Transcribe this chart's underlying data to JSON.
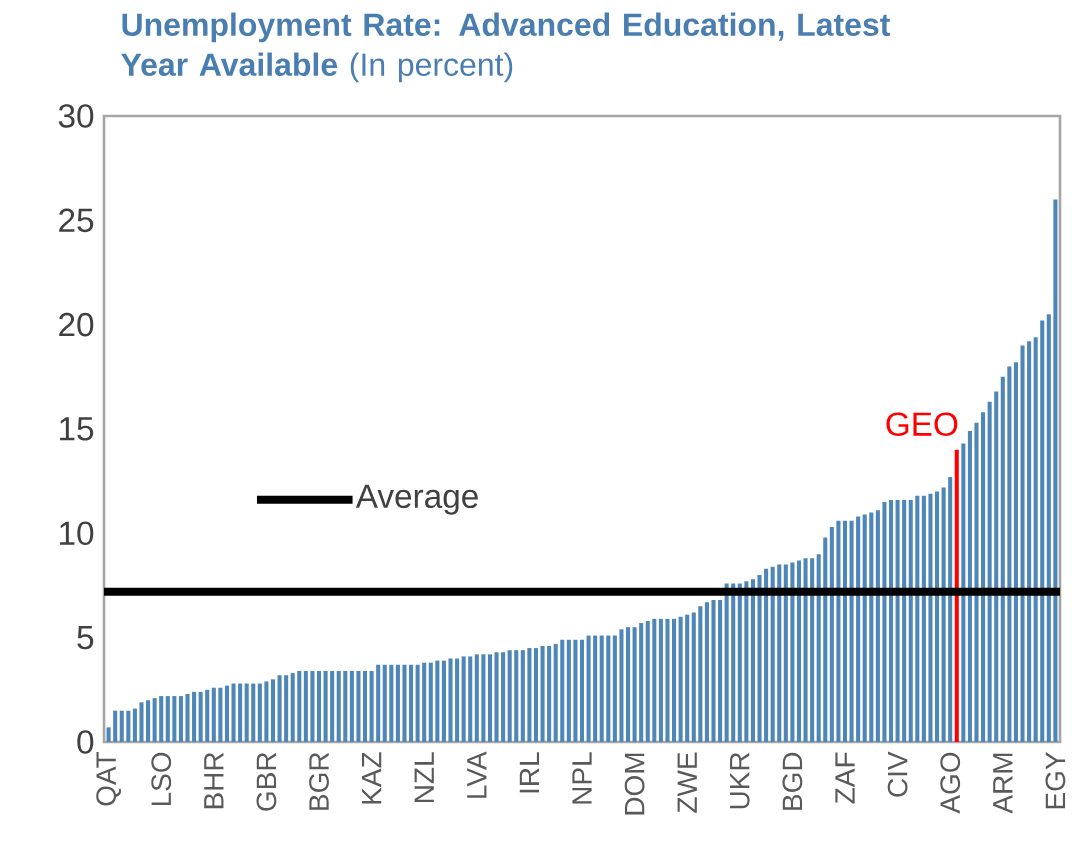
{
  "chart_data": {
    "type": "bar",
    "title": "**Unemployment Rate: Advanced Education, Latest Year Available** (In percent)",
    "categories": [
      "QAT",
      null,
      null,
      null,
      null,
      null,
      null,
      null,
      "LSO",
      null,
      null,
      null,
      null,
      null,
      null,
      null,
      "BHR",
      null,
      null,
      null,
      null,
      null,
      null,
      null,
      "GBR",
      null,
      null,
      null,
      null,
      null,
      null,
      null,
      "BGR",
      null,
      null,
      null,
      null,
      null,
      null,
      null,
      "KAZ",
      null,
      null,
      null,
      null,
      null,
      null,
      null,
      "NZL",
      null,
      null,
      null,
      null,
      null,
      null,
      null,
      "LVA",
      null,
      null,
      null,
      null,
      null,
      null,
      null,
      "IRL",
      null,
      null,
      null,
      null,
      null,
      null,
      null,
      "NPL",
      null,
      null,
      null,
      null,
      null,
      null,
      null,
      "DOM",
      null,
      null,
      null,
      null,
      null,
      null,
      null,
      "ZWE",
      null,
      null,
      null,
      null,
      null,
      null,
      null,
      "UKR",
      null,
      null,
      null,
      null,
      null,
      null,
      null,
      "BGD",
      null,
      null,
      null,
      null,
      null,
      null,
      null,
      "ZAF",
      null,
      null,
      null,
      null,
      null,
      null,
      null,
      "CIV",
      null,
      null,
      null,
      null,
      null,
      null,
      null,
      "AGO",
      null,
      null,
      null,
      null,
      null,
      null,
      null,
      "ARM",
      null,
      null,
      null,
      null,
      null,
      null,
      null,
      "EGY"
    ],
    "values": [
      0.7,
      1.5,
      1.5,
      1.5,
      1.6,
      1.9,
      2.0,
      2.1,
      2.2,
      2.2,
      2.2,
      2.2,
      2.3,
      2.4,
      2.4,
      2.5,
      2.6,
      2.6,
      2.7,
      2.8,
      2.8,
      2.8,
      2.8,
      2.8,
      2.9,
      3.0,
      3.2,
      3.2,
      3.3,
      3.4,
      3.4,
      3.4,
      3.4,
      3.4,
      3.4,
      3.4,
      3.4,
      3.4,
      3.4,
      3.4,
      3.4,
      3.7,
      3.7,
      3.7,
      3.7,
      3.7,
      3.7,
      3.7,
      3.8,
      3.8,
      3.9,
      3.9,
      4.0,
      4.0,
      4.1,
      4.1,
      4.2,
      4.2,
      4.2,
      4.3,
      4.3,
      4.4,
      4.4,
      4.4,
      4.5,
      4.5,
      4.6,
      4.6,
      4.7,
      4.9,
      4.9,
      4.9,
      4.9,
      5.1,
      5.1,
      5.1,
      5.1,
      5.1,
      5.4,
      5.5,
      5.5,
      5.7,
      5.8,
      5.9,
      5.9,
      5.9,
      5.9,
      6.0,
      6.1,
      6.2,
      6.5,
      6.7,
      6.8,
      6.8,
      7.6,
      7.6,
      7.6,
      7.7,
      7.8,
      8.0,
      8.3,
      8.4,
      8.5,
      8.5,
      8.6,
      8.7,
      8.8,
      8.8,
      9.0,
      9.8,
      10.3,
      10.6,
      10.6,
      10.6,
      10.8,
      10.9,
      11.0,
      11.1,
      11.5,
      11.6,
      11.6,
      11.6,
      11.6,
      11.8,
      11.8,
      11.9,
      12.0,
      12.2,
      12.7,
      14.0,
      14.3,
      14.9,
      15.3,
      15.8,
      16.3,
      16.8,
      17.5,
      18.0,
      18.2,
      19.0,
      19.2,
      19.4,
      20.2,
      20.5,
      26.0
    ],
    "colors": [
      "#4f86b8",
      "#4f86b8",
      "#4f86b8",
      "#4f86b8",
      "#4f86b8",
      "#4f86b8",
      "#4f86b8",
      "#4f86b8",
      "#4f86b8",
      "#4f86b8",
      "#4f86b8",
      "#4f86b8",
      "#4f86b8",
      "#4f86b8",
      "#4f86b8",
      "#4f86b8",
      "#4f86b8",
      "#4f86b8",
      "#4f86b8",
      "#4f86b8",
      "#4f86b8",
      "#4f86b8",
      "#4f86b8",
      "#4f86b8",
      "#4f86b8",
      "#4f86b8",
      "#4f86b8",
      "#4f86b8",
      "#4f86b8",
      "#4f86b8",
      "#4f86b8",
      "#4f86b8",
      "#4f86b8",
      "#4f86b8",
      "#4f86b8",
      "#4f86b8",
      "#4f86b8",
      "#4f86b8",
      "#4f86b8",
      "#4f86b8",
      "#4f86b8",
      "#4f86b8",
      "#4f86b8",
      "#4f86b8",
      "#4f86b8",
      "#4f86b8",
      "#4f86b8",
      "#4f86b8",
      "#4f86b8",
      "#4f86b8",
      "#4f86b8",
      "#4f86b8",
      "#4f86b8",
      "#4f86b8",
      "#4f86b8",
      "#4f86b8",
      "#4f86b8",
      "#4f86b8",
      "#4f86b8",
      "#4f86b8",
      "#4f86b8",
      "#4f86b8",
      "#4f86b8",
      "#4f86b8",
      "#4f86b8",
      "#4f86b8",
      "#4f86b8",
      "#4f86b8",
      "#4f86b8",
      "#4f86b8",
      "#4f86b8",
      "#4f86b8",
      "#4f86b8",
      "#4f86b8",
      "#4f86b8",
      "#4f86b8",
      "#4f86b8",
      "#4f86b8",
      "#4f86b8",
      "#4f86b8",
      "#4f86b8",
      "#4f86b8",
      "#4f86b8",
      "#4f86b8",
      "#4f86b8",
      "#4f86b8",
      "#4f86b8",
      "#4f86b8",
      "#4f86b8",
      "#4f86b8",
      "#4f86b8",
      "#4f86b8",
      "#4f86b8",
      "#4f86b8",
      "#4f86b8",
      "#4f86b8",
      "#4f86b8",
      "#4f86b8",
      "#4f86b8",
      "#4f86b8",
      "#4f86b8",
      "#4f86b8",
      "#4f86b8",
      "#4f86b8",
      "#4f86b8",
      "#4f86b8",
      "#4f86b8",
      "#4f86b8",
      "#4f86b8",
      "#4f86b8",
      "#4f86b8",
      "#4f86b8",
      "#4f86b8",
      "#4f86b8",
      "#4f86b8",
      "#4f86b8",
      "#4f86b8",
      "#4f86b8",
      "#4f86b8",
      "#4f86b8",
      "#4f86b8",
      "#4f86b8",
      "#4f86b8",
      "#4f86b8",
      "#4f86b8",
      "#4f86b8",
      "#4f86b8",
      "#4f86b8",
      "#4f86b8",
      "#ff0000",
      "#4f86b8",
      "#4f86b8",
      "#4f86b8",
      "#4f86b8",
      "#4f86b8",
      "#4f86b8",
      "#4f86b8",
      "#4f86b8",
      "#4f86b8",
      "#4f86b8",
      "#4f86b8",
      "#4f86b8",
      "#4f86b8",
      "#4f86b8",
      "#4f86b8"
    ],
    "annotations": [
      "GEO"
    ],
    "ref_lines": [
      {
        "axis": "y",
        "value": 7.2,
        "label": "Average",
        "color": "#000000"
      }
    ],
    "ylim": [
      0,
      30
    ],
    "yticks": [
      0,
      5,
      10,
      15,
      20,
      25,
      30
    ]
  }
}
